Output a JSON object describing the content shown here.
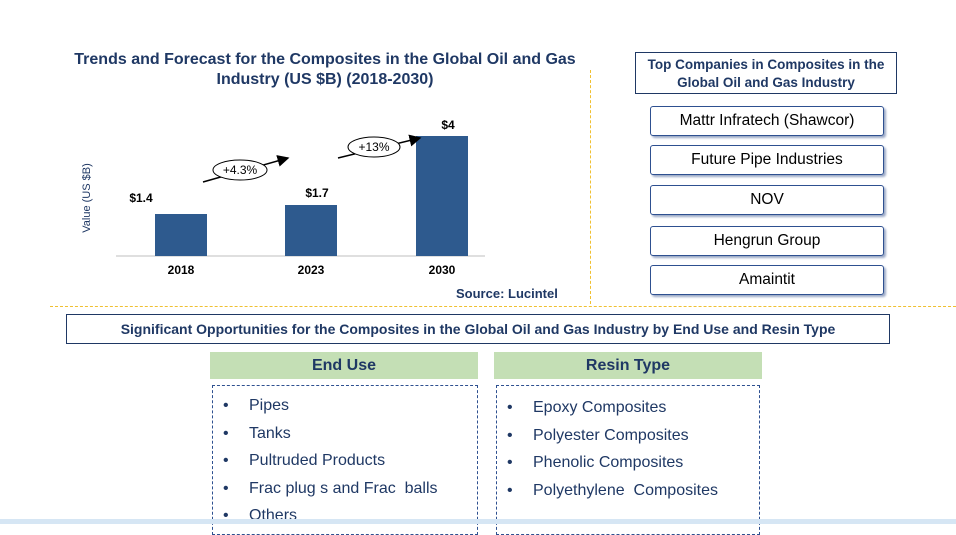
{
  "chart_data": {
    "type": "bar",
    "title": "Trends and Forecast for the Composites in the Global Oil and Gas Industry (US $B) (2018-2030)",
    "ylabel": "Value (US $B)",
    "categories": [
      "2018",
      "2023",
      "2030"
    ],
    "values": [
      1.4,
      1.7,
      4
    ],
    "value_labels": [
      "$1.4",
      "$1.7",
      "$4"
    ],
    "growth_labels": [
      "+4.3%",
      "+13%"
    ],
    "bar_color": "#2e5a8e",
    "ylim": [
      0,
      4.2
    ],
    "source": "Source: Lucintel"
  },
  "companies": {
    "title": "Top Companies in Composites in the Global Oil and Gas Industry",
    "items": [
      "Mattr Infratech (Shawcor)",
      "Future Pipe Industries",
      "NOV",
      "Hengrun Group",
      "Amaintit"
    ]
  },
  "opportunities": {
    "title": "Significant Opportunities for the Composites in the Global Oil and Gas Industry by End Use and Resin Type",
    "end_use": {
      "heading": "End Use",
      "items": [
        "Pipes",
        "Tanks",
        "Pultruded Products",
        "Frac plug s and Frac  balls",
        "Others"
      ]
    },
    "resin_type": {
      "heading": "Resin Type",
      "items": [
        "Epoxy Composites",
        "Polyester Composites",
        "Phenolic Composites",
        "Polyethylene  Composites"
      ]
    }
  },
  "colors": {
    "title": "#1f3864",
    "accent_green": "#c4dfb5",
    "divider": "#f0c030"
  }
}
